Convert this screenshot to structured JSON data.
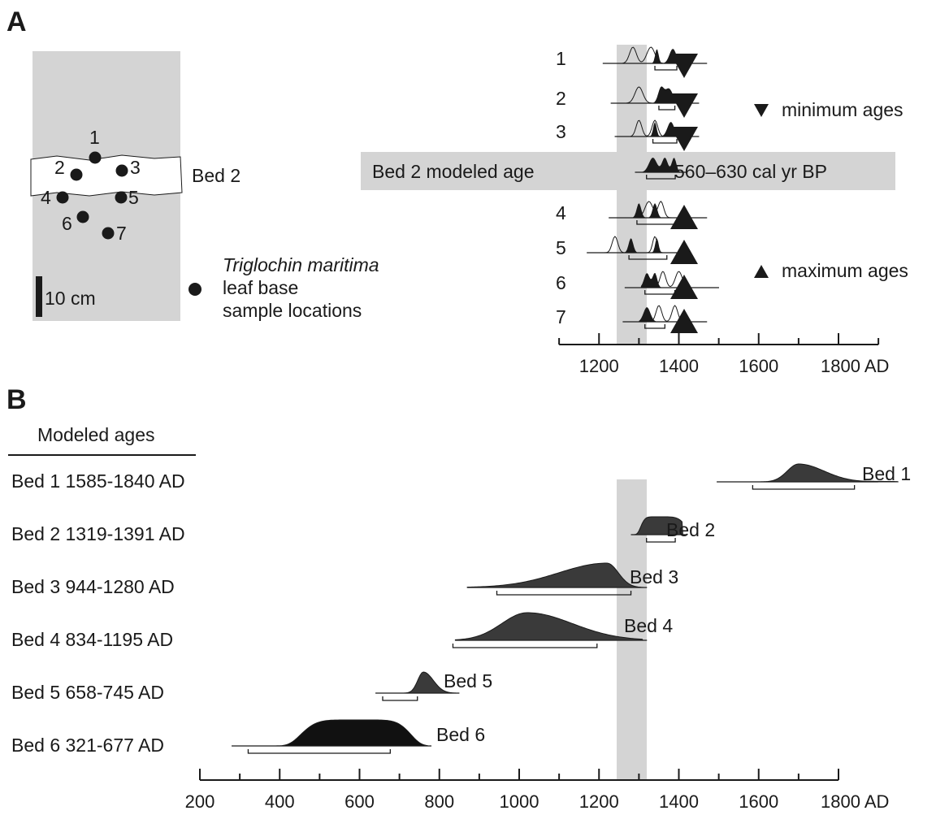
{
  "panels": {
    "a": "A",
    "b": "B"
  },
  "core": {
    "bed_label": "Bed 2",
    "scale_label": "10 cm",
    "legend_species": "Triglochin maritima",
    "legend_line2": "leaf base",
    "legend_line3": "sample locations",
    "samples": [
      "1",
      "2",
      "3",
      "4",
      "5",
      "6",
      "7"
    ]
  },
  "panel_a": {
    "samples": [
      "1",
      "2",
      "3",
      "4",
      "5",
      "6",
      "7"
    ],
    "min_ages_label": "minimum ages",
    "max_ages_label": "maximum ages",
    "modeled_label": "Bed 2 modeled age",
    "modeled_range": "560–630 cal yr BP",
    "axis_ticks": [
      "1200",
      "1400",
      "1600",
      "1800 AD"
    ],
    "highlight_band": [
      1319,
      1391
    ]
  },
  "panel_b": {
    "title": "Modeled ages",
    "beds": [
      {
        "label": "Bed 1 1585-1840 AD",
        "tag": "Bed 1",
        "start": 1585,
        "end": 1840
      },
      {
        "label": "Bed 2 1319-1391 AD",
        "tag": "Bed 2",
        "start": 1319,
        "end": 1391
      },
      {
        "label": "Bed 3 944-1280 AD",
        "tag": "Bed 3",
        "start": 944,
        "end": 1280
      },
      {
        "label": "Bed 4 834-1195 AD",
        "tag": "Bed 4",
        "start": 834,
        "end": 1195
      },
      {
        "label": "Bed 5 658-745 AD",
        "tag": "Bed 5",
        "start": 658,
        "end": 745
      },
      {
        "label": "Bed 6 321-677 AD",
        "tag": "Bed 6",
        "start": 321,
        "end": 677
      }
    ],
    "axis_ticks": [
      "200",
      "400",
      "600",
      "800",
      "1000",
      "1200",
      "1400",
      "1600",
      "1800 AD"
    ]
  },
  "colors": {
    "band": "#d4d4d4",
    "dark": "#1a1a1a",
    "fill": "#3a3a3a"
  }
}
